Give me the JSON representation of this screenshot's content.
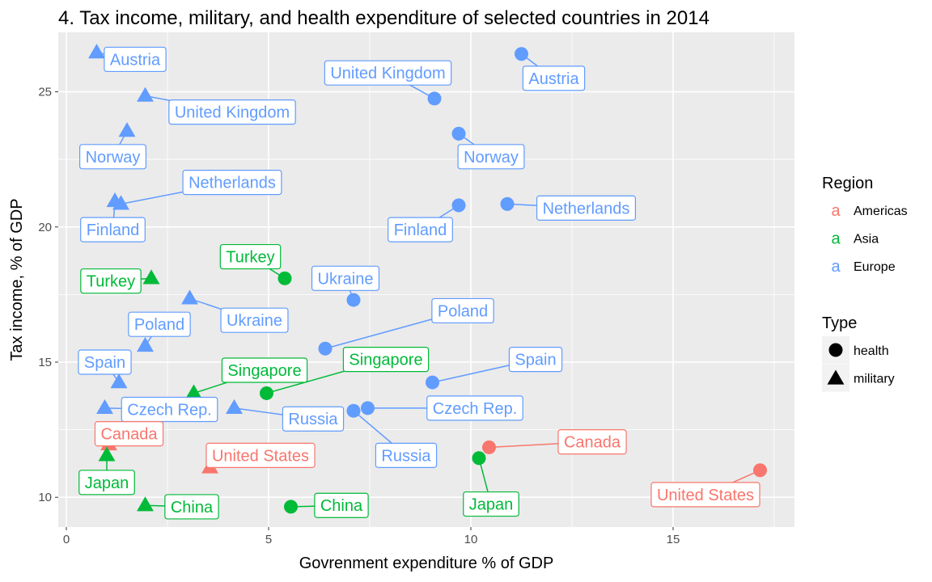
{
  "chart_data": {
    "type": "scatter",
    "title": "4. Tax income, military, and health expenditure of selected countries in 2014",
    "xlabel": "Govrenment expenditure % of GDP",
    "ylabel": "Tax income, % of GDP",
    "xlim": [
      -0.2,
      18.0
    ],
    "ylim": [
      8.9,
      27.2
    ],
    "x_ticks": [
      0,
      5,
      10,
      15
    ],
    "y_ticks": [
      10,
      15,
      20,
      25
    ],
    "grid": true,
    "legend_placement": "right",
    "colors": {
      "Americas": "#F8766D",
      "Asia": "#00BA38",
      "Europe": "#619CFF"
    },
    "legend": {
      "region_title": "Region",
      "region_key_glyph": "a",
      "regions": [
        "Americas",
        "Asia",
        "Europe"
      ],
      "type_title": "Type",
      "types": [
        {
          "name": "health",
          "shape": "circle"
        },
        {
          "name": "military",
          "shape": "triangle"
        }
      ]
    },
    "points": [
      {
        "label": "Austria",
        "region": "Europe",
        "type": "military",
        "x": 0.75,
        "y": 26.45,
        "lx": 1.7,
        "ly": 26.2
      },
      {
        "label": "Austria",
        "region": "Europe",
        "type": "health",
        "x": 11.25,
        "y": 26.4,
        "lx": 12.05,
        "ly": 25.5
      },
      {
        "label": "United Kingdom",
        "region": "Europe",
        "type": "military",
        "x": 1.95,
        "y": 24.85,
        "lx": 4.1,
        "ly": 24.25
      },
      {
        "label": "United Kingdom",
        "region": "Europe",
        "type": "health",
        "x": 9.1,
        "y": 24.75,
        "lx": 7.95,
        "ly": 25.7
      },
      {
        "label": "Norway",
        "region": "Europe",
        "type": "military",
        "x": 1.5,
        "y": 23.55,
        "lx": 1.15,
        "ly": 22.6
      },
      {
        "label": "Norway",
        "region": "Europe",
        "type": "health",
        "x": 9.7,
        "y": 23.45,
        "lx": 10.5,
        "ly": 22.6
      },
      {
        "label": "Netherlands",
        "region": "Europe",
        "type": "military",
        "x": 1.35,
        "y": 20.85,
        "lx": 4.1,
        "ly": 21.65
      },
      {
        "label": "Netherlands",
        "region": "Europe",
        "type": "health",
        "x": 10.9,
        "y": 20.85,
        "lx": 12.85,
        "ly": 20.7
      },
      {
        "label": "Finland",
        "region": "Europe",
        "type": "military",
        "x": 1.2,
        "y": 20.95,
        "lx": 1.15,
        "ly": 19.9
      },
      {
        "label": "Finland",
        "region": "Europe",
        "type": "health",
        "x": 9.7,
        "y": 20.8,
        "lx": 8.75,
        "ly": 19.9
      },
      {
        "label": "Turkey",
        "region": "Asia",
        "type": "military",
        "x": 2.1,
        "y": 18.1,
        "lx": 1.1,
        "ly": 18.0
      },
      {
        "label": "Turkey",
        "region": "Asia",
        "type": "health",
        "x": 5.4,
        "y": 18.1,
        "lx": 4.55,
        "ly": 18.9
      },
      {
        "label": "Ukraine",
        "region": "Europe",
        "type": "military",
        "x": 3.05,
        "y": 17.35,
        "lx": 4.65,
        "ly": 16.55
      },
      {
        "label": "Ukraine",
        "region": "Europe",
        "type": "health",
        "x": 7.1,
        "y": 17.3,
        "lx": 6.9,
        "ly": 18.1
      },
      {
        "label": "Poland",
        "region": "Europe",
        "type": "military",
        "x": 1.95,
        "y": 15.6,
        "lx": 2.3,
        "ly": 16.4
      },
      {
        "label": "Poland",
        "region": "Europe",
        "type": "health",
        "x": 6.4,
        "y": 15.5,
        "lx": 9.8,
        "ly": 16.9
      },
      {
        "label": "Spain",
        "region": "Europe",
        "type": "military",
        "x": 1.3,
        "y": 14.25,
        "lx": 0.95,
        "ly": 15.0
      },
      {
        "label": "Spain",
        "region": "Europe",
        "type": "health",
        "x": 9.05,
        "y": 14.25,
        "lx": 11.6,
        "ly": 15.1
      },
      {
        "label": "Singapore",
        "region": "Asia",
        "type": "military",
        "x": 3.15,
        "y": 13.85,
        "lx": 4.9,
        "ly": 14.7
      },
      {
        "label": "Singapore",
        "region": "Asia",
        "type": "health",
        "x": 4.95,
        "y": 13.85,
        "lx": 7.9,
        "ly": 15.1
      },
      {
        "label": "Czech Rep.",
        "region": "Europe",
        "type": "military",
        "x": 0.95,
        "y": 13.3,
        "lx": 2.55,
        "ly": 13.25
      },
      {
        "label": "Czech Rep.",
        "region": "Europe",
        "type": "health",
        "x": 7.45,
        "y": 13.3,
        "lx": 10.1,
        "ly": 13.3
      },
      {
        "label": "Russia",
        "region": "Europe",
        "type": "military",
        "x": 4.15,
        "y": 13.3,
        "lx": 6.1,
        "ly": 12.9
      },
      {
        "label": "Russia",
        "region": "Europe",
        "type": "health",
        "x": 7.1,
        "y": 13.2,
        "lx": 8.4,
        "ly": 11.55
      },
      {
        "label": "Canada",
        "region": "Americas",
        "type": "military",
        "x": 1.05,
        "y": 11.95,
        "lx": 1.55,
        "ly": 12.35
      },
      {
        "label": "Canada",
        "region": "Americas",
        "type": "health",
        "x": 10.45,
        "y": 11.85,
        "lx": 13.0,
        "ly": 12.05
      },
      {
        "label": "United States",
        "region": "Americas",
        "type": "military",
        "x": 3.55,
        "y": 11.1,
        "lx": 4.8,
        "ly": 11.55
      },
      {
        "label": "United States",
        "region": "Americas",
        "type": "health",
        "x": 17.15,
        "y": 11.0,
        "lx": 15.8,
        "ly": 10.1
      },
      {
        "label": "Japan",
        "region": "Asia",
        "type": "military",
        "x": 1.0,
        "y": 11.55,
        "lx": 1.0,
        "ly": 10.55
      },
      {
        "label": "Japan",
        "region": "Asia",
        "type": "health",
        "x": 10.2,
        "y": 11.45,
        "lx": 10.5,
        "ly": 9.75
      },
      {
        "label": "China",
        "region": "Asia",
        "type": "military",
        "x": 1.95,
        "y": 9.7,
        "lx": 3.1,
        "ly": 9.65
      },
      {
        "label": "China",
        "region": "Asia",
        "type": "health",
        "x": 5.55,
        "y": 9.65,
        "lx": 6.8,
        "ly": 9.7
      }
    ]
  }
}
